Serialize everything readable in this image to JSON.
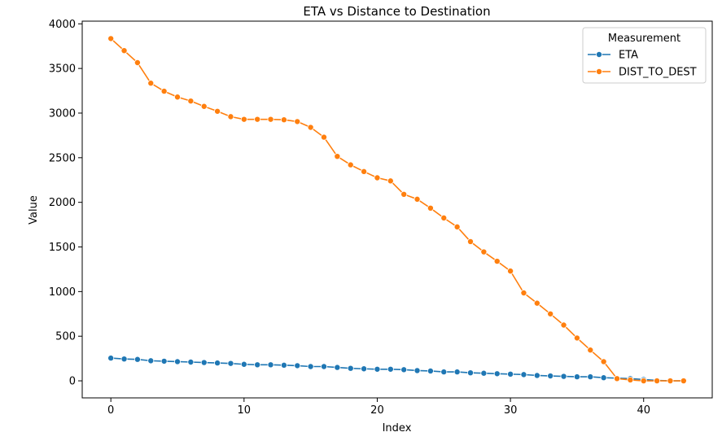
{
  "chart_data": {
    "type": "line",
    "title": "ETA vs Distance to Destination",
    "xlabel": "Index",
    "ylabel": "Value",
    "xlim": [
      -2.15,
      45.15
    ],
    "ylim": [
      -191,
      4030
    ],
    "xticks": [
      0,
      10,
      20,
      30,
      40
    ],
    "yticks": [
      0,
      500,
      1000,
      1500,
      2000,
      2500,
      3000,
      3500,
      4000
    ],
    "grid": false,
    "legend": {
      "title": "Measurement",
      "placement": "top-right"
    },
    "x": [
      0,
      1,
      2,
      3,
      4,
      5,
      6,
      7,
      8,
      9,
      10,
      11,
      12,
      13,
      14,
      15,
      16,
      17,
      18,
      19,
      20,
      21,
      22,
      23,
      24,
      25,
      26,
      27,
      28,
      29,
      30,
      31,
      32,
      33,
      34,
      35,
      36,
      37,
      38,
      39,
      40,
      41,
      42,
      43
    ],
    "series": [
      {
        "name": "ETA",
        "color": "#1f77b4",
        "values": [
          255,
          245,
          240,
          225,
          220,
          215,
          210,
          205,
          200,
          195,
          185,
          180,
          180,
          175,
          170,
          160,
          160,
          150,
          140,
          135,
          130,
          130,
          125,
          115,
          110,
          100,
          100,
          90,
          85,
          80,
          75,
          70,
          60,
          55,
          50,
          45,
          45,
          35,
          30,
          25,
          15,
          5,
          0,
          0
        ]
      },
      {
        "name": "DIST_TO_DEST",
        "color": "#ff7f0e",
        "values": [
          3835,
          3700,
          3565,
          3335,
          3245,
          3180,
          3135,
          3075,
          3020,
          2960,
          2930,
          2930,
          2930,
          2925,
          2905,
          2840,
          2730,
          2515,
          2420,
          2345,
          2275,
          2240,
          2090,
          2035,
          1935,
          1825,
          1725,
          1560,
          1445,
          1340,
          1230,
          985,
          870,
          750,
          625,
          480,
          345,
          215,
          25,
          10,
          0,
          0,
          0,
          0
        ]
      }
    ]
  }
}
